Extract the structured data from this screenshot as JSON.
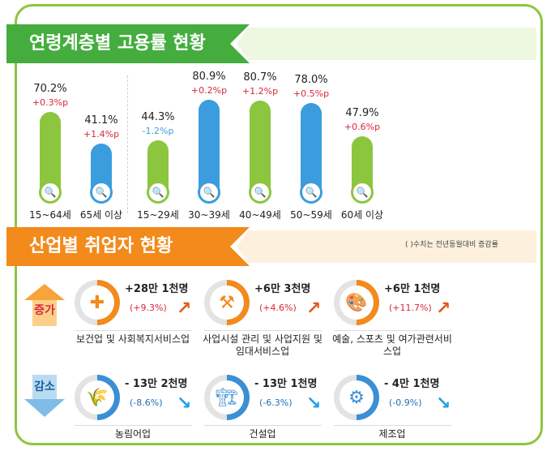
{
  "section1": {
    "title": "연령계층별 고용률 현황"
  },
  "colors": {
    "green": "#8cc63f",
    "blue": "#3b9ddd",
    "red": "#d9273b",
    "orange": "#f28a1c"
  },
  "chart_data": {
    "type": "bar",
    "categories": [
      "15~64세",
      "65세 이상",
      "15~29세",
      "30~39세",
      "40~49세",
      "50~59세",
      "60세 이상"
    ],
    "values": [
      70.2,
      41.1,
      44.3,
      80.9,
      80.7,
      78.0,
      47.9
    ],
    "value_labels": [
      "70.2%",
      "41.1%",
      "44.3%",
      "80.9%",
      "80.7%",
      "78.0%",
      "47.9%"
    ],
    "changes": [
      "+0.3%p",
      "+1.4%p",
      "-1.2%p",
      "+0.2%p",
      "+1.2%p",
      "+0.5%p",
      "+0.6%p"
    ],
    "bar_colors": [
      "green",
      "blue",
      "green",
      "blue",
      "green",
      "blue",
      "green"
    ]
  },
  "section2": {
    "title": "산업별 취업자 현황",
    "note": "( )수치는 전년동월대비 증감률",
    "increase_label": "증가",
    "decrease_label": "감소",
    "increase": [
      {
        "value": "+28만 1천명",
        "pct": "(+9.3%)",
        "name": "보건업 및 사회복지서비스업",
        "icon": "first-aid-kit-icon"
      },
      {
        "value": "+6만 3천명",
        "pct": "(+4.6%)",
        "name": "사업시설 관리 및 사업지원 및 임대서비스업",
        "icon": "business-support-icon"
      },
      {
        "value": "+6만 1천명",
        "pct": "(+11.7%)",
        "name": "예술, 스포츠 및 여가관련서비스업",
        "icon": "art-palette-icon"
      }
    ],
    "decrease": [
      {
        "value": "- 13만 2천명",
        "pct": "(-8.6%)",
        "name": "농림어업",
        "icon": "wheat-icon"
      },
      {
        "value": "- 13만 1천명",
        "pct": "(-6.3%)",
        "name": "건설업",
        "icon": "excavator-icon"
      },
      {
        "value": "- 4만 1천명",
        "pct": "(-0.9%)",
        "name": "제조업",
        "icon": "gear-icon"
      }
    ]
  }
}
